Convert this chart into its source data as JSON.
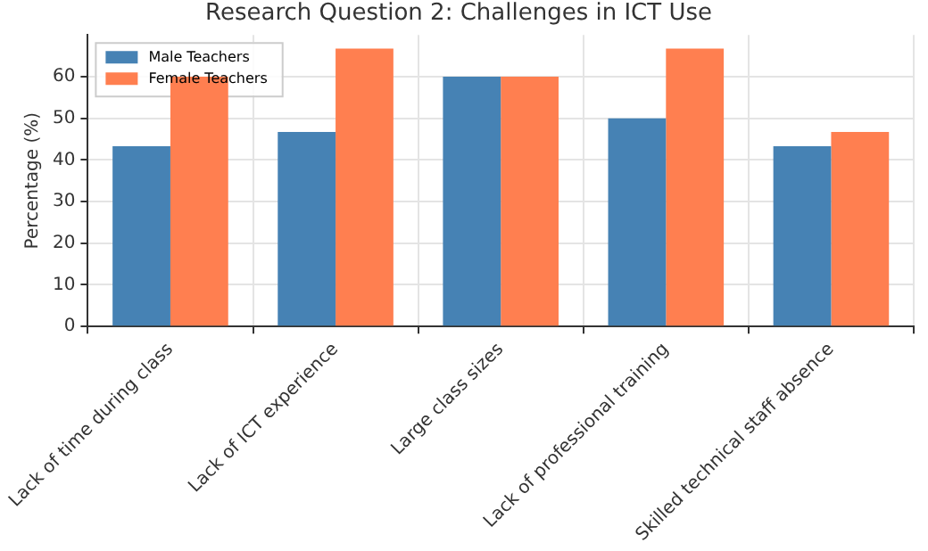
{
  "chart_data": {
    "type": "bar",
    "title": "Research Question 2: Challenges in ICT Use",
    "ylabel": "Percentage (%)",
    "categories": [
      "Lack of time during class",
      "Lack of ICT experience",
      "Large class sizes",
      "Lack of professional training",
      "Skilled technical staff absence"
    ],
    "series": [
      {
        "name": "Male Teachers",
        "color": "#4682b4",
        "values": [
          43.3,
          46.7,
          60,
          50,
          43.3
        ]
      },
      {
        "name": "Female Teachers",
        "color": "#ff7f50",
        "values": [
          60,
          66.7,
          60,
          66.7,
          46.7
        ]
      }
    ],
    "ylim": [
      0,
      70
    ],
    "yticks": [
      0,
      10,
      20,
      30,
      40,
      50,
      60
    ],
    "grid": true,
    "legend": "top left"
  }
}
